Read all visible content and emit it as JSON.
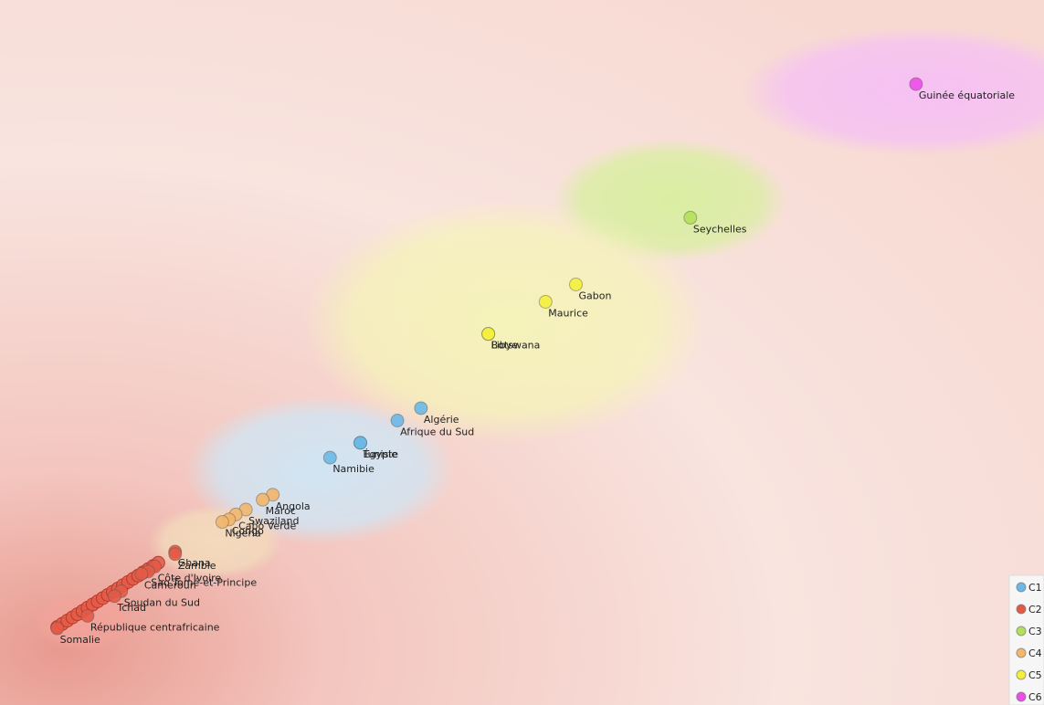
{
  "chart_data": {
    "type": "scatter",
    "grid": false,
    "legend_position": "bottom-right",
    "clusters": [
      {
        "name": "C1",
        "color": "#6bb8e6",
        "blob": "#cfe6f5",
        "cx": 8.0,
        "cy": 6.5,
        "rx": 4.0,
        "ry": 3.0
      },
      {
        "name": "C2",
        "color": "#e35a47",
        "blob": "#f2a39a",
        "cx": 1.0,
        "cy": 0.4,
        "rx": 1.5,
        "ry": 1.2
      },
      {
        "name": "C3",
        "color": "#b2e05a",
        "blob": "#d8ef9f",
        "cx": 18.4,
        "cy": 17.4,
        "rx": 3.5,
        "ry": 2.5
      },
      {
        "name": "C4",
        "color": "#f2b66c",
        "blob": "#f3dcbc",
        "cx": 4.9,
        "cy": 3.6,
        "rx": 2.0,
        "ry": 1.5
      },
      {
        "name": "C5",
        "color": "#f5ee3c",
        "blob": "#f5f3b8",
        "cx": 13.5,
        "cy": 12.5,
        "rx": 6.0,
        "ry": 4.9
      },
      {
        "name": "C6",
        "color": "#ee4ee8",
        "blob": "#f6c0f5",
        "cx": 25.8,
        "cy": 21.8,
        "rx": 5.3,
        "ry": 2.6
      }
    ],
    "points": [
      {
        "label": "Guinée équatoriale",
        "cluster": "C6",
        "x": 25.7,
        "y": 22.1
      },
      {
        "label": "Seychelles",
        "cluster": "C3",
        "x": 19.0,
        "y": 16.7
      },
      {
        "label": "Gabon",
        "cluster": "C5",
        "x": 15.6,
        "y": 14.0
      },
      {
        "label": "Maurice",
        "cluster": "C5",
        "x": 14.7,
        "y": 13.3
      },
      {
        "label": "Botswana",
        "cluster": "C5",
        "x": 13.0,
        "y": 12.0
      },
      {
        "label": "Libye",
        "cluster": "C5",
        "x": 13.0,
        "y": 12.0
      },
      {
        "label": "Algérie",
        "cluster": "C1",
        "x": 11.0,
        "y": 9.0
      },
      {
        "label": "Afrique du Sud",
        "cluster": "C1",
        "x": 10.3,
        "y": 8.5
      },
      {
        "label": "Égypte",
        "cluster": "C1",
        "x": 9.2,
        "y": 7.6
      },
      {
        "label": "Tunisie",
        "cluster": "C1",
        "x": 9.2,
        "y": 7.6
      },
      {
        "label": "Namibie",
        "cluster": "C1",
        "x": 8.3,
        "y": 7.0
      },
      {
        "label": "Angola",
        "cluster": "C4",
        "x": 6.6,
        "y": 5.5
      },
      {
        "label": "Maroc",
        "cluster": "C4",
        "x": 6.3,
        "y": 5.3
      },
      {
        "label": "Swaziland",
        "cluster": "C4",
        "x": 5.8,
        "y": 4.9
      },
      {
        "label": "Cabo Verde",
        "cluster": "C4",
        "x": 5.5,
        "y": 4.7
      },
      {
        "label": "Congo",
        "cluster": "C4",
        "x": 5.3,
        "y": 4.5
      },
      {
        "label": "Nigeria",
        "cluster": "C4",
        "x": 5.1,
        "y": 4.4
      },
      {
        "label": "Ghana",
        "cluster": "C2",
        "x": 3.7,
        "y": 3.2
      },
      {
        "label": "Zambie",
        "cluster": "C2",
        "x": 3.7,
        "y": 3.1
      },
      {
        "label": "Côte d'Ivoire",
        "cluster": "C2",
        "x": 3.1,
        "y": 2.6
      },
      {
        "label": "Sao Tomé-et-Principe",
        "cluster": "C2",
        "x": 2.9,
        "y": 2.4
      },
      {
        "label": "Cameroun",
        "cluster": "C2",
        "x": 2.7,
        "y": 2.3
      },
      {
        "label": "Soudan du Sud",
        "cluster": "C2",
        "x": 2.1,
        "y": 1.6
      },
      {
        "label": "Tchad",
        "cluster": "C2",
        "x": 1.9,
        "y": 1.4
      },
      {
        "label": "République centrafricaine",
        "cluster": "C2",
        "x": 1.1,
        "y": 0.6
      },
      {
        "label": "Somalie",
        "cluster": "C2",
        "x": 0.2,
        "y": 0.1
      }
    ],
    "xlim": [
      -1.5,
      29.5
    ],
    "ylim": [
      -3.0,
      25.5
    ]
  }
}
